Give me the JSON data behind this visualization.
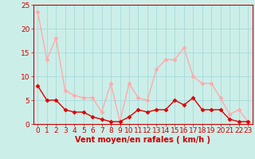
{
  "hours": [
    0,
    1,
    2,
    3,
    4,
    5,
    6,
    7,
    8,
    9,
    10,
    11,
    12,
    13,
    14,
    15,
    16,
    17,
    18,
    19,
    20,
    21,
    22,
    23
  ],
  "vent_moyen": [
    8,
    5,
    5,
    3,
    2.5,
    2.5,
    1.5,
    1,
    0.5,
    0.5,
    1.5,
    3,
    2.5,
    3,
    3,
    5,
    4,
    5.5,
    3,
    3,
    3,
    1,
    0.5,
    0.5
  ],
  "rafales": [
    23.5,
    13.5,
    18,
    7,
    6,
    5.5,
    5.5,
    2.5,
    8.5,
    0.5,
    8.5,
    5.5,
    5,
    11.5,
    13.5,
    13.5,
    16,
    10,
    8.5,
    8.5,
    5.5,
    2,
    3,
    0.5
  ],
  "color_moyen": "#dd0000",
  "color_rafales": "#ffaaaa",
  "bg_color": "#cceee8",
  "grid_color": "#aadddd",
  "xlabel": "Vent moyen/en rafales ( km/h )",
  "ylim": [
    0,
    25
  ],
  "yticks": [
    0,
    5,
    10,
    15,
    20,
    25
  ],
  "xticks": [
    0,
    1,
    2,
    3,
    4,
    5,
    6,
    7,
    8,
    9,
    10,
    11,
    12,
    13,
    14,
    15,
    16,
    17,
    18,
    19,
    20,
    21,
    22,
    23
  ],
  "tick_color": "#cc0000",
  "spine_color": "#cc0000",
  "label_color": "#cc0000",
  "label_fontsize": 7,
  "tick_fontsize": 6.5,
  "marker": "D",
  "markersize": 2.5,
  "linewidth": 1.0
}
